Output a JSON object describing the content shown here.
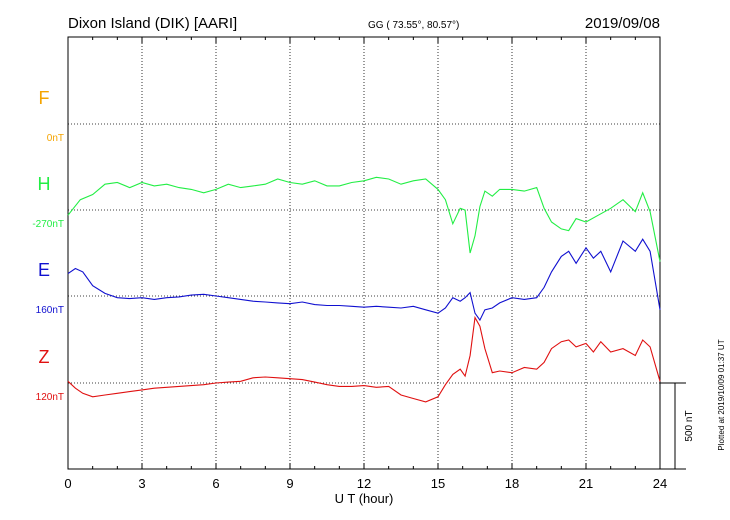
{
  "header": {
    "station": "Dixon Island (DIK)  [AARI]",
    "coords": "GG ( 73.55°,  80.57°)",
    "date": "2019/09/08"
  },
  "plotted_note": "Plotted at 2019/10/09 01:37 UT",
  "colors": {
    "F": "#f5a400",
    "H": "#22ee44",
    "E": "#1010d0",
    "Z": "#e01010",
    "grid": "#000000"
  },
  "chart_data": {
    "type": "line",
    "xlabel": "U T (hour)",
    "xlim": [
      0,
      24
    ],
    "x_ticks": [
      "0",
      "3",
      "6",
      "9",
      "12",
      "15",
      "18",
      "21",
      "24"
    ],
    "scale_bar": {
      "label": "500 nT",
      "value_nT": 500
    },
    "series": [
      {
        "name": "F",
        "baseline_label": "0nT",
        "color": "#f5a400",
        "x": [],
        "values": []
      },
      {
        "name": "H",
        "baseline_label": "-270nT",
        "color": "#22ee44",
        "x": [
          0,
          0.5,
          1,
          1.5,
          2,
          2.5,
          3,
          3.5,
          4,
          4.5,
          5,
          5.5,
          6,
          6.5,
          7,
          7.5,
          8,
          8.5,
          9,
          9.5,
          10,
          10.5,
          11,
          11.5,
          12,
          12.5,
          13,
          13.5,
          14,
          14.5,
          15,
          15.3,
          15.6,
          15.9,
          16.1,
          16.3,
          16.5,
          16.7,
          16.9,
          17.2,
          17.5,
          18,
          18.5,
          19,
          19.3,
          19.6,
          20,
          20.3,
          20.6,
          21,
          21.5,
          22,
          22.5,
          23,
          23.3,
          23.6,
          24
        ],
        "values": [
          -300,
          -210,
          -180,
          -120,
          -110,
          -140,
          -110,
          -130,
          -120,
          -140,
          -150,
          -170,
          -150,
          -120,
          -140,
          -130,
          -120,
          -90,
          -110,
          -120,
          -100,
          -130,
          -130,
          -110,
          -100,
          -80,
          -90,
          -120,
          -100,
          -90,
          -150,
          -210,
          -350,
          -260,
          -270,
          -520,
          -420,
          -250,
          -160,
          -190,
          -150,
          -150,
          -160,
          -140,
          -260,
          -340,
          -380,
          -390,
          -320,
          -340,
          -300,
          -260,
          -210,
          -280,
          -170,
          -280,
          -570
        ]
      },
      {
        "name": "E",
        "baseline_label": "160nT",
        "color": "#1010d0",
        "x": [
          0,
          0.3,
          0.6,
          1,
          1.5,
          2,
          2.5,
          3,
          3.5,
          4,
          4.5,
          5,
          5.5,
          6,
          6.5,
          7,
          7.5,
          8,
          8.5,
          9,
          9.5,
          10,
          10.5,
          11,
          11.5,
          12,
          12.5,
          13,
          13.5,
          14,
          14.5,
          15,
          15.3,
          15.6,
          15.9,
          16.1,
          16.3,
          16.5,
          16.7,
          16.9,
          17.2,
          17.5,
          18,
          18.5,
          19,
          19.3,
          19.6,
          20,
          20.3,
          20.6,
          21,
          21.3,
          21.6,
          22,
          22.5,
          23,
          23.3,
          23.6,
          24
        ],
        "values": [
          290,
          320,
          300,
          220,
          175,
          150,
          145,
          150,
          140,
          150,
          155,
          165,
          170,
          160,
          150,
          140,
          130,
          125,
          120,
          115,
          125,
          110,
          105,
          105,
          100,
          95,
          100,
          95,
          90,
          100,
          80,
          60,
          90,
          150,
          130,
          150,
          180,
          60,
          20,
          80,
          90,
          120,
          150,
          140,
          150,
          210,
          300,
          390,
          420,
          350,
          440,
          380,
          420,
          300,
          480,
          420,
          490,
          420,
          80
        ]
      },
      {
        "name": "Z",
        "baseline_label": "120nT",
        "color": "#e01010",
        "x": [
          0,
          0.3,
          0.6,
          1,
          1.5,
          2,
          2.5,
          3,
          3.5,
          4,
          4.5,
          5,
          5.5,
          6,
          6.5,
          7,
          7.5,
          8,
          8.5,
          9,
          9.5,
          10,
          10.5,
          11,
          11.5,
          12,
          12.5,
          13,
          13.5,
          14,
          14.5,
          15,
          15.3,
          15.6,
          15.9,
          16.1,
          16.3,
          16.5,
          16.7,
          16.9,
          17.2,
          17.5,
          18,
          18.5,
          19,
          19.3,
          19.6,
          20,
          20.3,
          20.6,
          21,
          21.3,
          21.6,
          22,
          22.5,
          23,
          23.3,
          23.6,
          24
        ],
        "values": [
          130,
          90,
          60,
          40,
          50,
          60,
          70,
          80,
          90,
          95,
          100,
          105,
          110,
          120,
          125,
          130,
          150,
          155,
          150,
          145,
          140,
          125,
          110,
          100,
          100,
          105,
          95,
          100,
          50,
          30,
          10,
          40,
          110,
          170,
          200,
          160,
          280,
          500,
          450,
          320,
          180,
          190,
          180,
          210,
          200,
          240,
          320,
          360,
          370,
          330,
          350,
          300,
          360,
          300,
          320,
          280,
          370,
          330,
          130
        ]
      }
    ]
  }
}
